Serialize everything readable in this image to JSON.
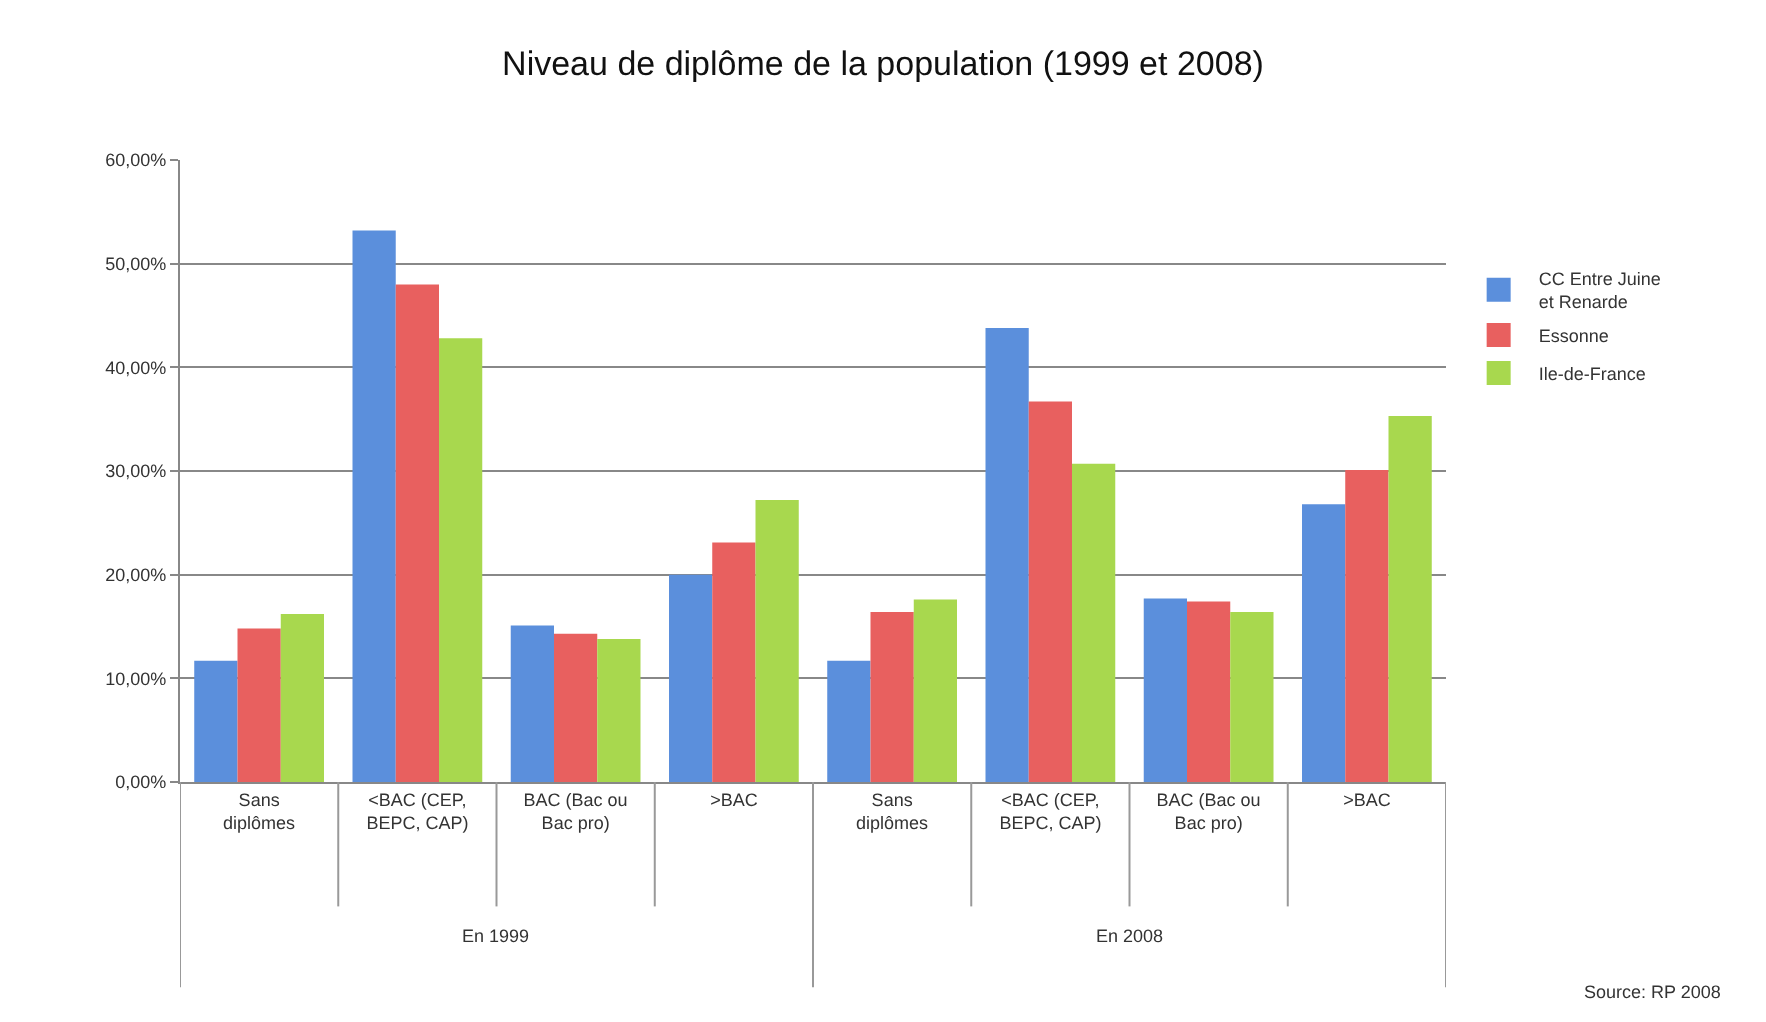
{
  "chart_data": {
    "type": "bar",
    "title": "Niveau de diplôme de la population (1999 et 2008)",
    "categories": [
      "Sans diplômes",
      "<BAC (CEP, BEPC, CAP)",
      "BAC (Bac ou Bac pro)",
      ">BAC",
      "Sans diplômes",
      "<BAC (CEP, BEPC, CAP)",
      "BAC (Bac ou Bac pro)",
      ">BAC"
    ],
    "series": [
      {
        "name": "CC Entre Juine et Renarde",
        "color": "#5b8fdc",
        "values": [
          11.7,
          53.2,
          15.1,
          20.0,
          11.7,
          43.8,
          17.7,
          26.8
        ]
      },
      {
        "name": "Essonne",
        "color": "#e8605f",
        "values": [
          14.8,
          48.0,
          14.3,
          23.1,
          16.4,
          36.7,
          17.4,
          30.1
        ]
      },
      {
        "name": "Ile-de-France",
        "color": "#a8d84e",
        "values": [
          16.2,
          42.8,
          13.8,
          27.2,
          17.6,
          30.7,
          16.4,
          35.3
        ]
      }
    ],
    "ylim": [
      0,
      60
    ],
    "yticks": [
      {
        "value": 0,
        "label": "0,00%"
      },
      {
        "value": 10,
        "label": "10,00%"
      },
      {
        "value": 20,
        "label": "20,00%"
      },
      {
        "value": 30,
        "label": "30,00%"
      },
      {
        "value": 40,
        "label": "40,00%"
      },
      {
        "value": 50,
        "label": "50,00%"
      },
      {
        "value": 60,
        "label": "60,00%"
      }
    ],
    "grid": "y",
    "legend": "right",
    "annotations": [
      "En 1999",
      "En 2008",
      "Source: RP 2008"
    ]
  }
}
